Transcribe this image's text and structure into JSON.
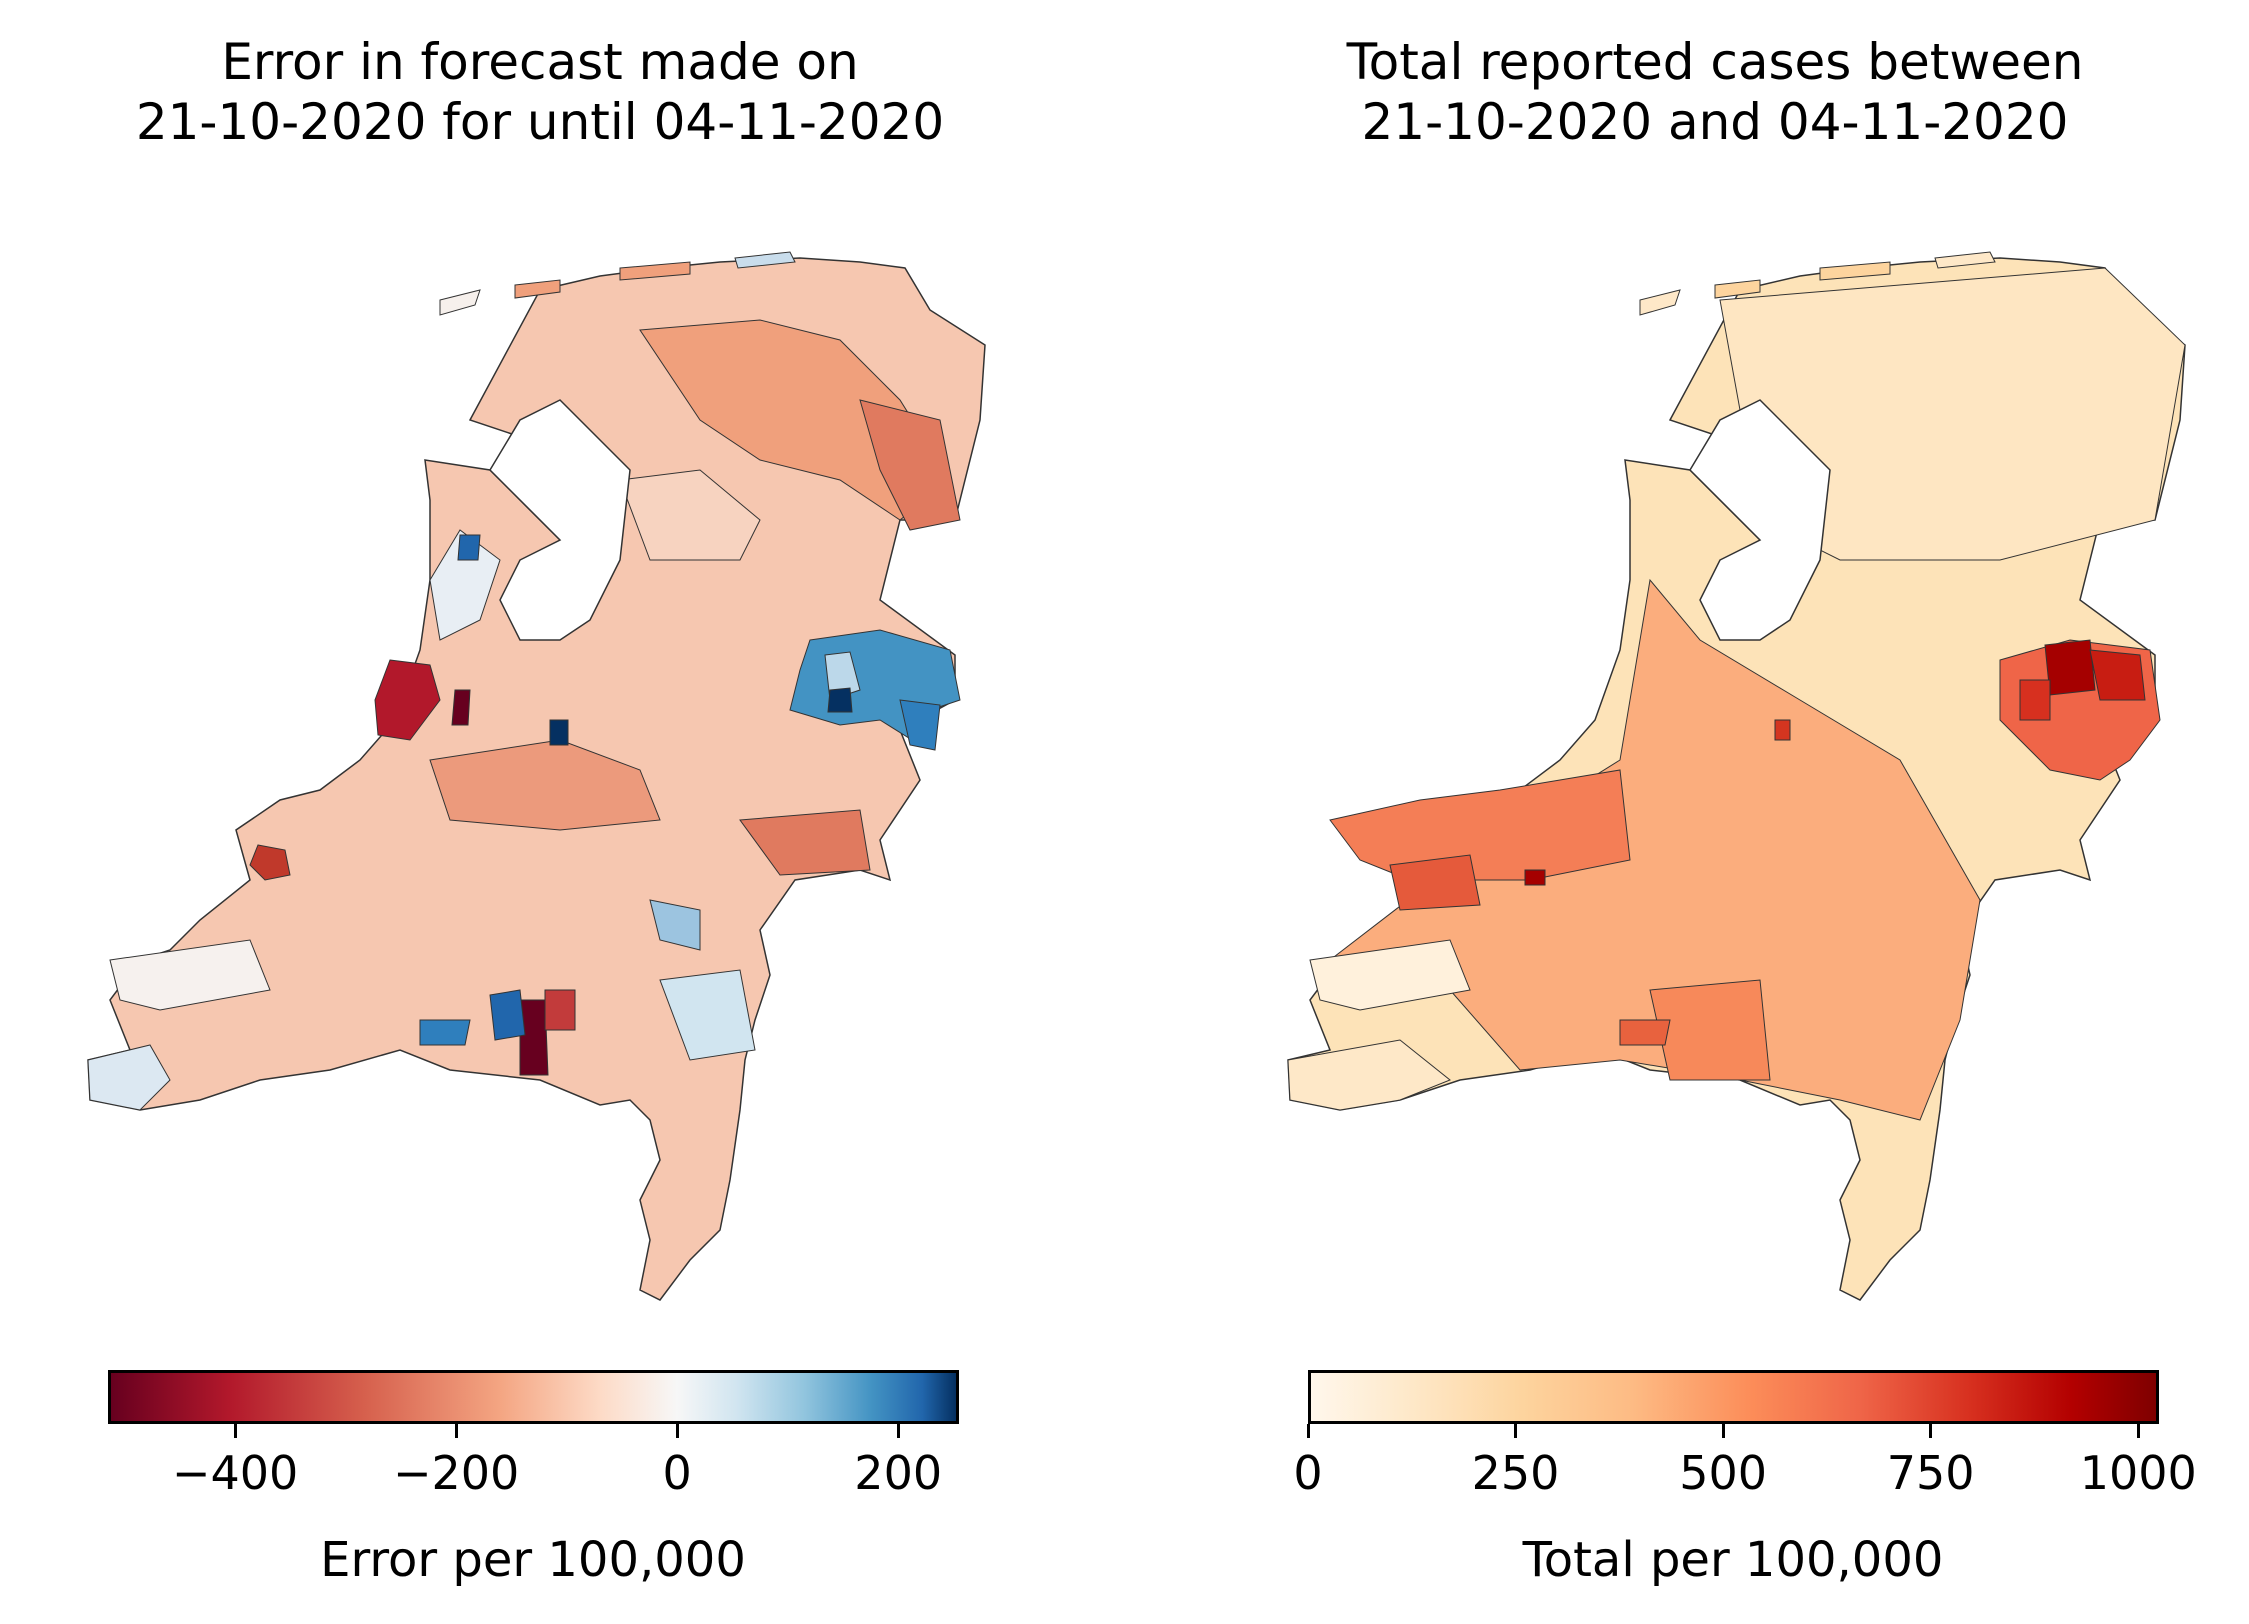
{
  "left": {
    "title": "Error in forecast made on\n21-10-2020 for until 04-11-2020",
    "colorbar_label": "Error per 100,000",
    "ticks": [
      "−400",
      "−200",
      "0",
      "200"
    ],
    "tick_values": [
      -400,
      -200,
      0,
      200
    ],
    "range": [
      -515,
      255
    ],
    "colormap": "RdBu"
  },
  "right": {
    "title": "Total reported cases between\n21-10-2020 and 04-11-2020",
    "colorbar_label": "Total per 100,000",
    "ticks": [
      "0",
      "250",
      "500",
      "750",
      "1000"
    ],
    "tick_values": [
      0,
      250,
      500,
      750,
      1000
    ],
    "range": [
      0,
      1025
    ],
    "colormap": "OrRd"
  },
  "colors": {
    "border": "#333333",
    "land_left_default": "#f4c0a8",
    "land_right_default": "#fdd49e"
  }
}
